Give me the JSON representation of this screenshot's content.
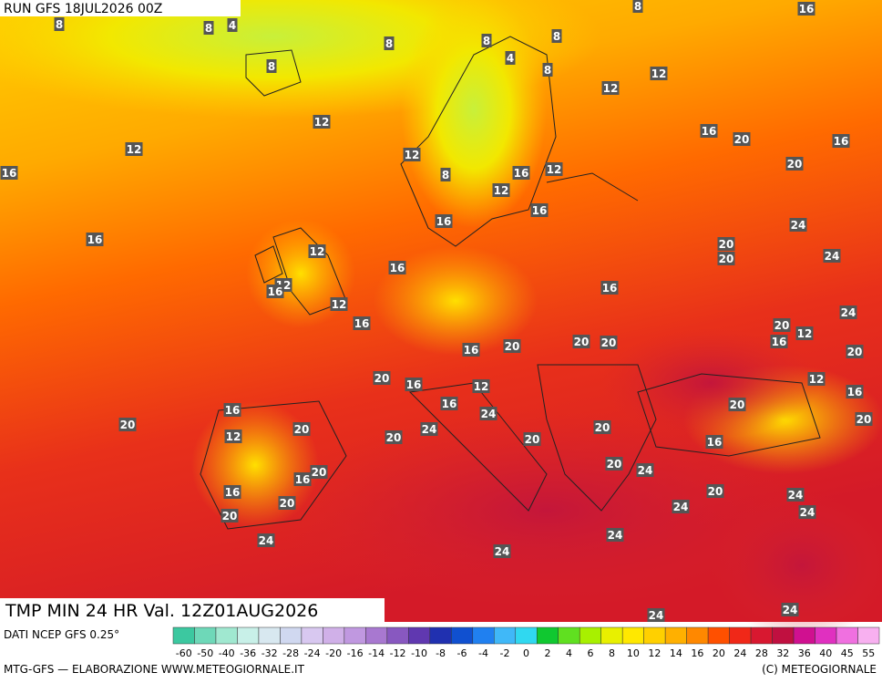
{
  "header": {
    "run": "RUN GFS 18JUL2026 00Z"
  },
  "map": {
    "title": "TMP MIN 24 HR Val. 12Z01AUG2026",
    "labels": [
      8,
      8,
      4,
      8,
      8,
      8,
      8,
      4,
      8,
      12,
      12,
      16,
      8,
      12,
      12,
      16,
      16,
      20,
      16,
      12,
      8,
      16,
      12,
      20,
      12,
      16,
      16,
      24,
      16,
      12,
      20,
      20,
      24,
      16,
      12,
      16,
      12,
      16,
      24,
      16,
      20,
      16,
      12,
      20,
      16,
      20,
      20,
      20,
      20,
      16,
      12,
      12,
      16,
      16,
      20,
      16,
      20,
      20,
      24,
      24,
      20,
      12,
      20,
      20,
      20,
      16,
      20,
      24,
      20,
      16,
      16,
      20,
      24,
      20,
      24,
      24,
      20,
      24,
      24,
      24,
      24,
      24
    ]
  },
  "legend": {
    "source": "DATI NCEP GFS 0.25°",
    "scale": [
      "-60",
      "-50",
      "-40",
      "-36",
      "-32",
      "-28",
      "-24",
      "-20",
      "-16",
      "-14",
      "-12",
      "-10",
      "-8",
      "-6",
      "-4",
      "-2",
      "0",
      "2",
      "4",
      "6",
      "8",
      "10",
      "12",
      "14",
      "16",
      "20",
      "24",
      "28",
      "32",
      "36",
      "40",
      "45",
      "55"
    ]
  },
  "footer": {
    "left": "MTG-GFS — ELABORAZIONE WWW.METEOGIORNALE.IT",
    "right": "(C) METEOGIORNALE"
  }
}
